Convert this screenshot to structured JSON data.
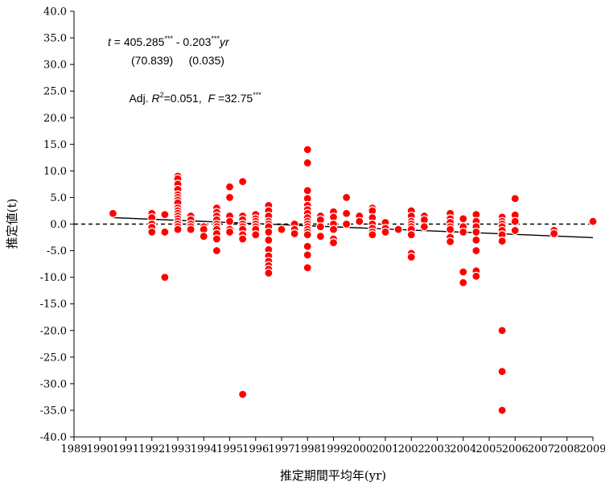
{
  "chart_data": {
    "type": "scatter",
    "title": "",
    "xlabel": "推定期間平均年(yr)",
    "ylabel": "推定値(t)",
    "xlim": [
      1989,
      2009
    ],
    "ylim": [
      -40,
      40
    ],
    "x_ticks": [
      "1989",
      "1990",
      "1991",
      "1992",
      "1993",
      "1994",
      "1995",
      "1996",
      "1997",
      "1998",
      "1999",
      "2000",
      "2001",
      "2002",
      "2003",
      "2004",
      "2005",
      "2006",
      "2007",
      "2008",
      "2009"
    ],
    "y_ticks": [
      "40.0",
      "35.0",
      "30.0",
      "25.0",
      "20.0",
      "15.0",
      "10.0",
      "5.0",
      "0.0",
      "-5.0",
      "-10.0",
      "-15.0",
      "-20.0",
      "-25.0",
      "-30.0",
      "-35.0",
      "-40.0"
    ],
    "grid": false,
    "marker_color": "#ff0000",
    "trend_color": "#000000",
    "zero_line": "dashed",
    "trend_line": {
      "intercept": 405.285,
      "slope": -0.203
    },
    "annotations": {
      "eq_prefix": "t",
      "eq_eq": " =  405.285",
      "eq_stars1": "***",
      "eq_mid": " -  0.203",
      "eq_stars2": "***",
      "eq_var": "yr",
      "se_line": "(70.839)     (0.035)",
      "adj_prefix": "Adj. ",
      "adj_R": "R",
      "adj_sup2": "2",
      "adj_val": "=0.051,  ",
      "adj_F": "F",
      "adj_Fval": " =32.75",
      "adj_stars": "***"
    },
    "points": [
      [
        1990.5,
        2.0
      ],
      [
        1992,
        2.0
      ],
      [
        1992,
        1.2
      ],
      [
        1992,
        0.0
      ],
      [
        1992,
        -0.6
      ],
      [
        1992,
        -1.5
      ],
      [
        1992.5,
        1.8
      ],
      [
        1992.5,
        -1.5
      ],
      [
        1992.5,
        -10.0
      ],
      [
        1993,
        9.0
      ],
      [
        1993,
        8.5
      ],
      [
        1993,
        7.5
      ],
      [
        1993,
        6.5
      ],
      [
        1993,
        5.5
      ],
      [
        1993,
        5.0
      ],
      [
        1993,
        4.5
      ],
      [
        1993,
        4.0
      ],
      [
        1993,
        3.0
      ],
      [
        1993,
        2.5
      ],
      [
        1993,
        2.0
      ],
      [
        1993,
        1.5
      ],
      [
        1993,
        1.0
      ],
      [
        1993,
        0.5
      ],
      [
        1993,
        0.0
      ],
      [
        1993,
        -0.5
      ],
      [
        1993,
        -1.0
      ],
      [
        1993.5,
        1.5
      ],
      [
        1993.5,
        0.8
      ],
      [
        1993.5,
        0.0
      ],
      [
        1993.5,
        -0.5
      ],
      [
        1993.5,
        -1.0
      ],
      [
        1994,
        -0.5
      ],
      [
        1994,
        -1.0
      ],
      [
        1994,
        -2.3
      ],
      [
        1994.5,
        3.0
      ],
      [
        1994.5,
        2.2
      ],
      [
        1994.5,
        1.5
      ],
      [
        1994.5,
        0.8
      ],
      [
        1994.5,
        0.0
      ],
      [
        1994.5,
        -0.5
      ],
      [
        1994.5,
        -1.0
      ],
      [
        1994.5,
        -1.8
      ],
      [
        1994.5,
        -2.8
      ],
      [
        1994.5,
        -5.0
      ],
      [
        1995,
        7.0
      ],
      [
        1995,
        5.0
      ],
      [
        1995,
        1.5
      ],
      [
        1995,
        0.5
      ],
      [
        1995,
        -1.0
      ],
      [
        1995,
        -1.5
      ],
      [
        1995.5,
        8.0
      ],
      [
        1995.5,
        1.5
      ],
      [
        1995.5,
        0.8
      ],
      [
        1995.5,
        0.0
      ],
      [
        1995.5,
        -0.5
      ],
      [
        1995.5,
        -1.0
      ],
      [
        1995.5,
        -2.0
      ],
      [
        1995.5,
        -2.8
      ],
      [
        1995.5,
        -32.0
      ],
      [
        1996,
        1.8
      ],
      [
        1996,
        1.0
      ],
      [
        1996,
        0.5
      ],
      [
        1996,
        0.0
      ],
      [
        1996,
        -0.5
      ],
      [
        1996,
        -1.0
      ],
      [
        1996,
        -2.0
      ],
      [
        1996.5,
        3.5
      ],
      [
        1996.5,
        2.5
      ],
      [
        1996.5,
        1.5
      ],
      [
        1996.5,
        0.5
      ],
      [
        1996.5,
        0.0
      ],
      [
        1996.5,
        -0.5
      ],
      [
        1996.5,
        -1.5
      ],
      [
        1996.5,
        -3.0
      ],
      [
        1996.5,
        -4.8
      ],
      [
        1996.5,
        -6.0
      ],
      [
        1996.5,
        -7.0
      ],
      [
        1996.5,
        -7.8
      ],
      [
        1996.5,
        -8.5
      ],
      [
        1996.5,
        -9.2
      ],
      [
        1997,
        -1.0
      ],
      [
        1997.5,
        0.0
      ],
      [
        1997.5,
        -1.0
      ],
      [
        1997.5,
        -1.8
      ],
      [
        1998,
        14.0
      ],
      [
        1998,
        11.5
      ],
      [
        1998,
        6.3
      ],
      [
        1998,
        4.8
      ],
      [
        1998,
        3.5
      ],
      [
        1998,
        2.7
      ],
      [
        1998,
        2.0
      ],
      [
        1998,
        1.2
      ],
      [
        1998,
        0.5
      ],
      [
        1998,
        0.0
      ],
      [
        1998,
        -0.5
      ],
      [
        1998,
        -1.0
      ],
      [
        1998,
        -1.5
      ],
      [
        1998,
        -2.0
      ],
      [
        1998,
        -4.2
      ],
      [
        1998,
        -5.8
      ],
      [
        1998,
        -8.2
      ],
      [
        1998.5,
        1.5
      ],
      [
        1998.5,
        0.8
      ],
      [
        1998.5,
        -0.5
      ],
      [
        1998.5,
        -2.3
      ],
      [
        1999,
        2.3
      ],
      [
        1999,
        1.3
      ],
      [
        1999,
        0.0
      ],
      [
        1999,
        -1.0
      ],
      [
        1999,
        -2.8
      ],
      [
        1999,
        -3.5
      ],
      [
        1999.5,
        5.0
      ],
      [
        1999.5,
        2.0
      ],
      [
        1999.5,
        0.0
      ],
      [
        2000,
        1.5
      ],
      [
        2000,
        0.5
      ],
      [
        2000.5,
        3.0
      ],
      [
        2000.5,
        2.5
      ],
      [
        2000.5,
        1.2
      ],
      [
        2000.5,
        0.0
      ],
      [
        2000.5,
        -0.8
      ],
      [
        2000.5,
        -1.5
      ],
      [
        2000.5,
        -2.0
      ],
      [
        2001,
        0.3
      ],
      [
        2001,
        -0.8
      ],
      [
        2001,
        -1.5
      ],
      [
        2001.5,
        -1.0
      ],
      [
        2002,
        2.5
      ],
      [
        2002,
        1.5
      ],
      [
        2002,
        0.5
      ],
      [
        2002,
        0.0
      ],
      [
        2002,
        -0.5
      ],
      [
        2002,
        -1.0
      ],
      [
        2002,
        -2.0
      ],
      [
        2002,
        -5.5
      ],
      [
        2002,
        -6.2
      ],
      [
        2002.5,
        1.5
      ],
      [
        2002.5,
        0.8
      ],
      [
        2002.5,
        -0.5
      ],
      [
        2003.5,
        2.0
      ],
      [
        2003.5,
        1.0
      ],
      [
        2003.5,
        0.3
      ],
      [
        2003.5,
        -0.5
      ],
      [
        2003.5,
        -1.0
      ],
      [
        2003.5,
        -2.5
      ],
      [
        2003.5,
        -3.3
      ],
      [
        2004,
        1.0
      ],
      [
        2004,
        -0.5
      ],
      [
        2004,
        -1.5
      ],
      [
        2004,
        -9.0
      ],
      [
        2004,
        -11.0
      ],
      [
        2004.5,
        1.8
      ],
      [
        2004.5,
        0.5
      ],
      [
        2004.5,
        -0.5
      ],
      [
        2004.5,
        -1.5
      ],
      [
        2004.5,
        -3.0
      ],
      [
        2004.5,
        -5.0
      ],
      [
        2004.5,
        -8.8
      ],
      [
        2004.5,
        -9.8
      ],
      [
        2005.5,
        1.3
      ],
      [
        2005.5,
        0.5
      ],
      [
        2005.5,
        0.0
      ],
      [
        2005.5,
        -0.5
      ],
      [
        2005.5,
        -1.2
      ],
      [
        2005.5,
        -2.0
      ],
      [
        2005.5,
        -3.2
      ],
      [
        2005.5,
        -20.0
      ],
      [
        2005.5,
        -27.7
      ],
      [
        2005.5,
        -35.0
      ],
      [
        2006,
        4.8
      ],
      [
        2006,
        1.7
      ],
      [
        2006,
        0.5
      ],
      [
        2006,
        -1.2
      ],
      [
        2007.5,
        -1.2
      ],
      [
        2007.5,
        -1.8
      ],
      [
        2009,
        0.5
      ]
    ]
  }
}
